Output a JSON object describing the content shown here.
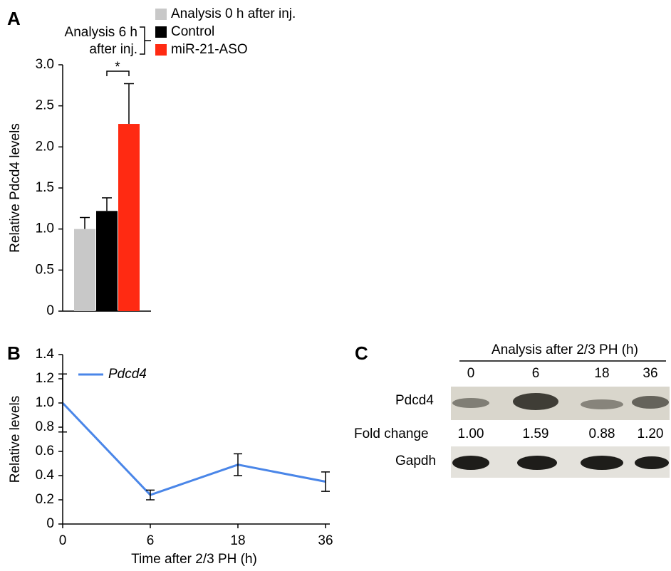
{
  "chart_data": [
    {
      "type": "bar",
      "panel": "A",
      "ylabel": "Relative Pdcd4 levels",
      "categories": [
        null
      ],
      "series": [
        {
          "name": "Analysis 0 h after inj.",
          "color": "#c8c8c8",
          "values": [
            1.0
          ],
          "errors": [
            0.14
          ]
        },
        {
          "name": "Control",
          "color": "#000000",
          "values": [
            1.22
          ],
          "errors": [
            0.16
          ]
        },
        {
          "name": "miR-21-ASO",
          "color": "#ff2a12",
          "values": [
            2.28
          ],
          "errors": [
            0.49
          ]
        }
      ],
      "legend_group": [
        "Analysis 6 h",
        "after inj."
      ],
      "annotation": "*",
      "ylim": [
        0,
        3
      ],
      "yticks": [
        0,
        0.5,
        {
          "value": 1,
          "label": "1.0"
        },
        1.5,
        {
          "value": 2,
          "label": "2.0"
        },
        2.5,
        {
          "value": 3,
          "label": "3.0"
        }
      ]
    },
    {
      "type": "line",
      "panel": "B",
      "ylabel": "Relative levels",
      "xlabel": "Time after 2/3 PH (h)",
      "categories": [
        "0",
        "6",
        "18",
        "36"
      ],
      "series": [
        {
          "name": "Pdcd4",
          "color": "#4a86e8",
          "values": [
            1.0,
            0.24,
            0.49,
            0.35
          ],
          "errors": [
            0.24,
            0.04,
            0.09,
            0.08
          ]
        }
      ],
      "ylim": [
        0,
        1.4
      ],
      "yticks": [
        0,
        0.2,
        0.4,
        0.6,
        0.8,
        {
          "value": 1,
          "label": "1.0"
        },
        1.2,
        1.4
      ]
    }
  ],
  "blot": {
    "panel": "C",
    "header": "Analysis after 2/3 PH (h)",
    "columns": [
      "0",
      "6",
      "18",
      "36"
    ],
    "rows": [
      "Pdcd4",
      "Fold change",
      "Gapdh"
    ],
    "fold_change": [
      "1.00",
      "1.59",
      "0.88",
      "1.20"
    ]
  }
}
